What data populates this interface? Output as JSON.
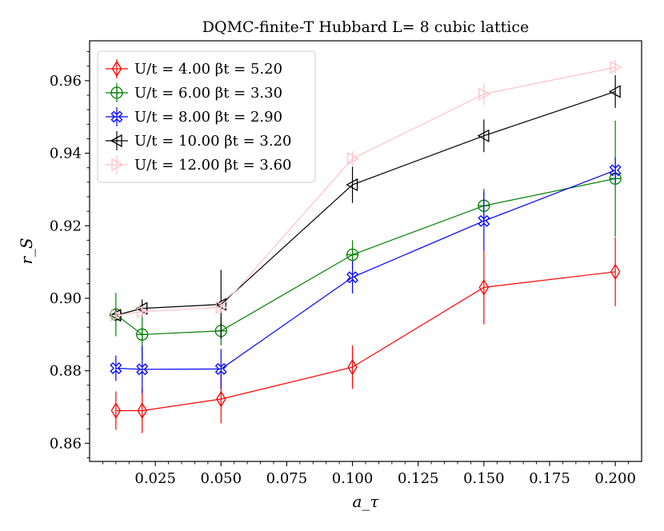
{
  "chart_data": {
    "type": "line",
    "title": "DQMC-finite-T Hubbard L= 8 cubic lattice",
    "xlabel": "a_τ",
    "ylabel": "r_S",
    "xlim": [
      0.0,
      0.21
    ],
    "ylim": [
      0.855,
      0.971
    ],
    "xticks": [
      0.025,
      0.05,
      0.075,
      0.1,
      0.125,
      0.15,
      0.175,
      0.2
    ],
    "xtick_labels": [
      "0.025",
      "0.050",
      "0.075",
      "0.100",
      "0.125",
      "0.150",
      "0.175",
      "0.200"
    ],
    "yticks": [
      0.86,
      0.88,
      0.9,
      0.92,
      0.94,
      0.96
    ],
    "ytick_labels": [
      "0.86",
      "0.88",
      "0.90",
      "0.92",
      "0.94",
      "0.96"
    ],
    "legend_position": "top-left",
    "series": [
      {
        "name": "U/t = 4.00 βt = 5.20",
        "color": "#ff0000",
        "marker": "thin-diamond",
        "x": [
          0.01,
          0.02,
          0.05,
          0.1,
          0.15,
          0.2
        ],
        "y": [
          0.869,
          0.869,
          0.8722,
          0.881,
          0.903,
          0.9073
        ],
        "err": [
          0.0053,
          0.0062,
          0.0067,
          0.006,
          0.0102,
          0.0095
        ]
      },
      {
        "name": "U/t = 6.00 βt = 3.30",
        "color": "#008000",
        "marker": "circle-plus",
        "x": [
          0.01,
          0.02,
          0.05,
          0.1,
          0.15,
          0.2
        ],
        "y": [
          0.8955,
          0.89,
          0.891,
          0.912,
          0.9255,
          0.933
        ],
        "err": [
          0.006,
          0.0068,
          0.004,
          0.004,
          0.0047,
          0.016
        ]
      },
      {
        "name": "U/t = 8.00 βt = 2.90",
        "color": "#0000ff",
        "marker": "circle-x",
        "x": [
          0.01,
          0.02,
          0.05,
          0.1,
          0.15,
          0.2
        ],
        "y": [
          0.8807,
          0.8804,
          0.8805,
          0.9058,
          0.9213,
          0.9353
        ],
        "err": [
          0.0035,
          0.0065,
          0.0055,
          0.0045,
          0.0082,
          0.0035
        ]
      },
      {
        "name": "U/t = 10.00 βt = 3.20",
        "color": "#000000",
        "marker": "triangle-left",
        "x": [
          0.01,
          0.02,
          0.05,
          0.1,
          0.15,
          0.2
        ],
        "y": [
          0.8953,
          0.8972,
          0.8983,
          0.9313,
          0.9448,
          0.957
        ],
        "err": [
          0.0015,
          0.0025,
          0.0095,
          0.005,
          0.0045,
          0.0045
        ]
      },
      {
        "name": "U/t = 12.00 βt = 3.60",
        "color": "#ffc0cb",
        "marker": "triangle-right",
        "x": [
          0.01,
          0.02,
          0.05,
          0.1,
          0.15,
          0.2
        ],
        "y": [
          0.8953,
          0.8963,
          0.8975,
          0.9385,
          0.9563,
          0.9637
        ],
        "err": [
          0.001,
          0.0015,
          0.0015,
          0.002,
          0.003,
          0.002
        ]
      }
    ]
  }
}
